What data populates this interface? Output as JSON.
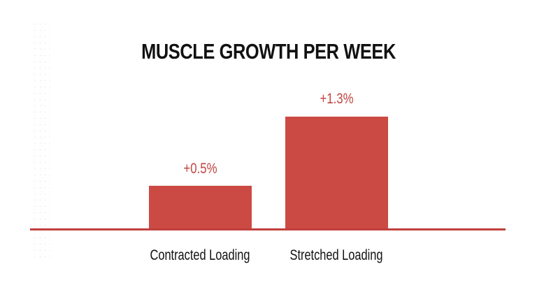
{
  "chart_data": {
    "type": "bar",
    "title": "MUSCLE GROWTH PER WEEK",
    "categories": [
      "Contracted Loading",
      "Stretched Loading"
    ],
    "values": [
      0.5,
      1.3
    ],
    "value_labels": [
      "+0.5%",
      "+1.3%"
    ],
    "unit": "%",
    "xlabel": "",
    "ylabel": "",
    "ylim": [
      0,
      1.4
    ],
    "grid": false,
    "legend": null,
    "colors": {
      "bar": "#cc4a44",
      "value_label": "#c0443f",
      "baseline": "#c0403c",
      "text": "#111111"
    }
  }
}
